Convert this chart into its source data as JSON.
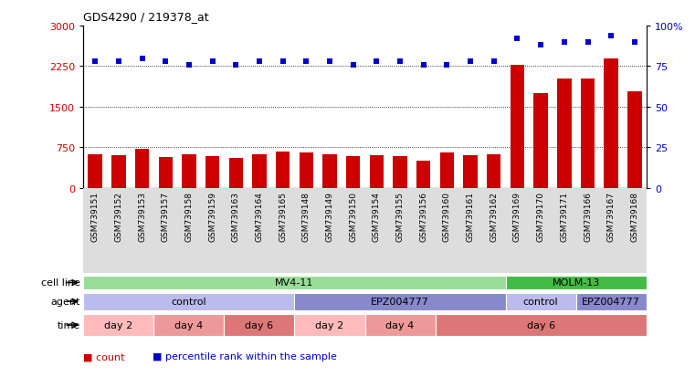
{
  "title": "GDS4290 / 219378_at",
  "samples": [
    "GSM739151",
    "GSM739152",
    "GSM739153",
    "GSM739157",
    "GSM739158",
    "GSM739159",
    "GSM739163",
    "GSM739164",
    "GSM739165",
    "GSM739148",
    "GSM739149",
    "GSM739150",
    "GSM739154",
    "GSM739155",
    "GSM739156",
    "GSM739160",
    "GSM739161",
    "GSM739162",
    "GSM739169",
    "GSM739170",
    "GSM739171",
    "GSM739166",
    "GSM739167",
    "GSM739168"
  ],
  "counts": [
    630,
    600,
    720,
    580,
    630,
    590,
    560,
    630,
    670,
    650,
    630,
    590,
    610,
    590,
    510,
    660,
    600,
    620,
    2280,
    1760,
    2020,
    2020,
    2390,
    1780
  ],
  "percentile_ranks": [
    78,
    78,
    80,
    78,
    76,
    78,
    76,
    78,
    78,
    78,
    78,
    76,
    78,
    78,
    76,
    76,
    78,
    78,
    92,
    88,
    90,
    90,
    94,
    90
  ],
  "ylim_left": [
    0,
    3000
  ],
  "ylim_right": [
    0,
    100
  ],
  "yticks_left": [
    0,
    750,
    1500,
    2250,
    3000
  ],
  "yticks_right": [
    0,
    25,
    50,
    75,
    100
  ],
  "bar_color": "#cc0000",
  "dot_color": "#0000cc",
  "cell_lines": [
    {
      "label": "MV4-11",
      "start": 0,
      "end": 18,
      "color": "#99dd99"
    },
    {
      "label": "MOLM-13",
      "start": 18,
      "end": 24,
      "color": "#44bb44"
    }
  ],
  "agents": [
    {
      "label": "control",
      "start": 0,
      "end": 9,
      "color": "#bbbbee"
    },
    {
      "label": "EPZ004777",
      "start": 9,
      "end": 18,
      "color": "#8888cc"
    },
    {
      "label": "control",
      "start": 18,
      "end": 21,
      "color": "#bbbbee"
    },
    {
      "label": "EPZ004777",
      "start": 21,
      "end": 24,
      "color": "#8888cc"
    }
  ],
  "times": [
    {
      "label": "day 2",
      "start": 0,
      "end": 3,
      "color": "#ffbbbb"
    },
    {
      "label": "day 4",
      "start": 3,
      "end": 6,
      "color": "#ee9999"
    },
    {
      "label": "day 6",
      "start": 6,
      "end": 9,
      "color": "#dd7777"
    },
    {
      "label": "day 2",
      "start": 9,
      "end": 12,
      "color": "#ffbbbb"
    },
    {
      "label": "day 4",
      "start": 12,
      "end": 15,
      "color": "#ee9999"
    },
    {
      "label": "day 6",
      "start": 15,
      "end": 24,
      "color": "#dd7777"
    }
  ],
  "legend_labels": [
    "count",
    "percentile rank within the sample"
  ],
  "legend_colors": [
    "#cc0000",
    "#0000cc"
  ],
  "bg_color": "#ffffff"
}
